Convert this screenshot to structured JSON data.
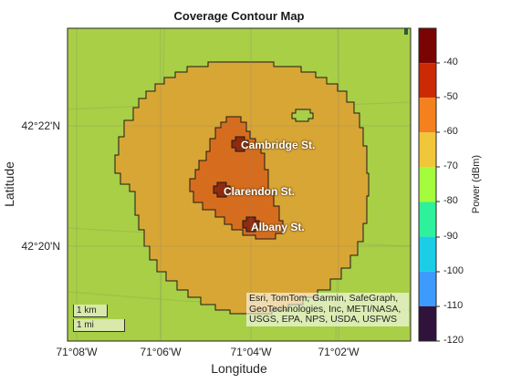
{
  "map": {
    "title": "Coverage Contour Map",
    "xlabel": "Longitude",
    "ylabel": "Latitude",
    "x_ticks": [
      "71°08'W",
      "71°06'W",
      "71°04'W",
      "71°02'W"
    ],
    "y_ticks": [
      "42°22'N",
      "42°20'N"
    ],
    "streets": [
      "Cambridge St.",
      "Clarendon St.",
      "Albany St."
    ],
    "attribution": "Esri, TomTom, Garmin, SafeGraph, GeoTechnologies, Inc, METI/NASA, USGS, EPA, NPS, USDA, USFWS",
    "scale": {
      "km": "1 km",
      "mi": "1 mi"
    },
    "colors": {
      "background_land": "#a8cf45",
      "outer_contour": "#d8a635",
      "inner_contour": "#d66d1e",
      "core_contour": "#8f2b0f"
    }
  },
  "colorbar": {
    "label": "Power (dBm)",
    "ticks": [
      "-40",
      "-50",
      "-60",
      "-70",
      "-80",
      "-90",
      "-100",
      "-110",
      "-120"
    ],
    "range": [
      -120,
      -30
    ],
    "bands": [
      {
        "from": -40,
        "to": -30,
        "color": "#7a0403"
      },
      {
        "from": -50,
        "to": -40,
        "color": "#cb2a04"
      },
      {
        "from": -60,
        "to": -50,
        "color": "#f4811d"
      },
      {
        "from": -70,
        "to": -60,
        "color": "#f0c73a"
      },
      {
        "from": -80,
        "to": -70,
        "color": "#a4fc3c"
      },
      {
        "from": -90,
        "to": -80,
        "color": "#2ef19c"
      },
      {
        "from": -100,
        "to": -90,
        "color": "#1ccde6"
      },
      {
        "from": -110,
        "to": -100,
        "color": "#3e9bfe"
      },
      {
        "from": -120,
        "to": -110,
        "color": "#30123b"
      }
    ]
  }
}
